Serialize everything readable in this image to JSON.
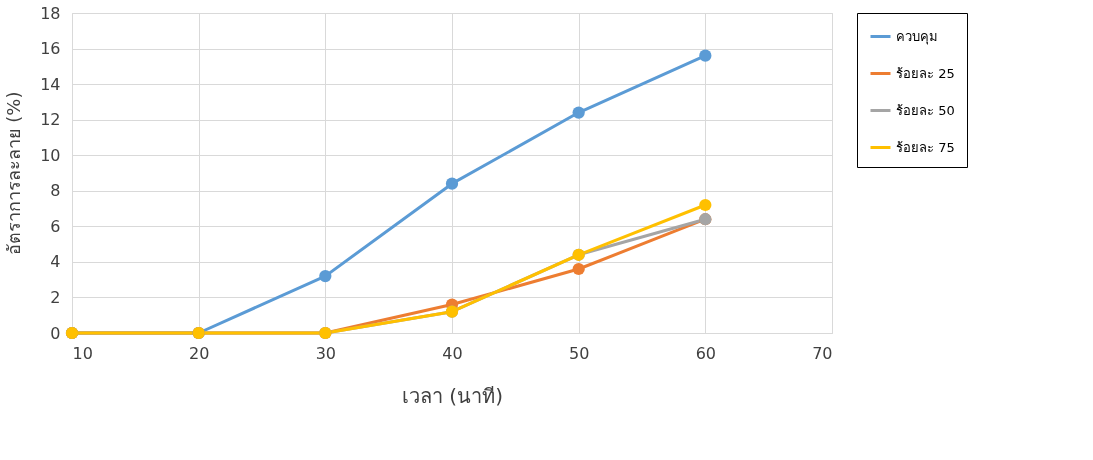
{
  "chart_data": {
    "type": "line",
    "xlabel": "เวลา (นาที)",
    "ylabel": "อัตราการละลาย (%)",
    "x": [
      10,
      20,
      30,
      40,
      50,
      60
    ],
    "xlim": [
      10,
      70
    ],
    "xticks": [
      10,
      20,
      30,
      40,
      50,
      60,
      70
    ],
    "ylim": [
      0,
      18
    ],
    "yticks": [
      0,
      2,
      4,
      6,
      8,
      10,
      12,
      14,
      16,
      18
    ],
    "grid": true,
    "legend": "right",
    "marker": "circle",
    "line_style": "solid",
    "series": [
      {
        "name": "ควบคุม",
        "color": "#5b9bd5",
        "values": [
          0,
          0,
          3.2,
          8.4,
          12.4,
          15.6
        ]
      },
      {
        "name": "ร้อยละ 25",
        "color": "#ed7d31",
        "values": [
          0,
          0,
          0,
          1.6,
          3.6,
          6.4
        ]
      },
      {
        "name": "ร้อยละ 50",
        "color": "#a5a5a5",
        "values": [
          0,
          0,
          0,
          1.2,
          4.4,
          6.4
        ]
      },
      {
        "name": "ร้อยละ 75",
        "color": "#ffc000",
        "values": [
          0,
          0,
          0,
          1.2,
          4.4,
          7.2
        ]
      }
    ]
  }
}
